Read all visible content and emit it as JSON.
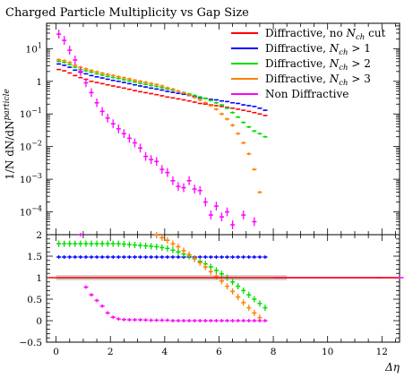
{
  "chart_data": {
    "type": "scatter",
    "title": "Charged Particle Multiplicity vs Gap Size",
    "xlabel": "Δη",
    "ylabel": "1/N dN/dN^particle",
    "ylabel_parts": {
      "main": "1/N dN/dN",
      "sup": "particle"
    },
    "xlim": [
      -0.35,
      12.65
    ],
    "x_ticks": [
      "0",
      "2",
      "4",
      "6",
      "8",
      "10",
      "12"
    ],
    "top_panel": {
      "yscale": "log",
      "ylim": [
        2e-05,
        60
      ],
      "y_ticks": [
        {
          "v": 10,
          "base": "10",
          "exp": "1"
        },
        {
          "v": 1,
          "base": "1",
          "exp": ""
        },
        {
          "v": 0.1,
          "base": "10",
          "exp": "−1"
        },
        {
          "v": 0.01,
          "base": "10",
          "exp": "−2"
        },
        {
          "v": 0.001,
          "base": "10",
          "exp": "−3"
        },
        {
          "v": 0.0001,
          "base": "10",
          "exp": "−4"
        }
      ],
      "series": [
        {
          "name": "Diffractive, no N_ch cut",
          "color": "#ff0000",
          "x": [
            0.1,
            0.3,
            0.5,
            0.7,
            0.9,
            1.1,
            1.3,
            1.5,
            1.7,
            1.9,
            2.1,
            2.3,
            2.5,
            2.7,
            2.9,
            3.1,
            3.3,
            3.5,
            3.7,
            3.9,
            4.1,
            4.3,
            4.5,
            4.7,
            4.9,
            5.1,
            5.3,
            5.5,
            5.7,
            5.9,
            6.1,
            6.3,
            6.5,
            6.7,
            6.9,
            7.1,
            7.3,
            7.5,
            7.7
          ],
          "y": [
            2.3,
            2.1,
            1.8,
            1.5,
            1.3,
            1.15,
            1.0,
            0.92,
            0.85,
            0.78,
            0.72,
            0.67,
            0.62,
            0.57,
            0.52,
            0.48,
            0.45,
            0.42,
            0.39,
            0.36,
            0.33,
            0.31,
            0.29,
            0.27,
            0.25,
            0.23,
            0.21,
            0.2,
            0.19,
            0.18,
            0.17,
            0.16,
            0.15,
            0.14,
            0.13,
            0.12,
            0.11,
            0.1,
            0.09
          ],
          "yerr_rel": 0.05
        },
        {
          "name": "Diffractive, N_ch > 1",
          "color": "#0000ff",
          "x": [
            0.1,
            0.3,
            0.5,
            0.7,
            0.9,
            1.1,
            1.3,
            1.5,
            1.7,
            1.9,
            2.1,
            2.3,
            2.5,
            2.7,
            2.9,
            3.1,
            3.3,
            3.5,
            3.7,
            3.9,
            4.1,
            4.3,
            4.5,
            4.7,
            4.9,
            5.1,
            5.3,
            5.5,
            5.7,
            5.9,
            6.1,
            6.3,
            6.5,
            6.7,
            6.9,
            7.1,
            7.3,
            7.5,
            7.7
          ],
          "y": [
            3.4,
            3.1,
            2.7,
            2.2,
            1.9,
            1.7,
            1.5,
            1.37,
            1.27,
            1.16,
            1.07,
            1.0,
            0.92,
            0.85,
            0.78,
            0.72,
            0.67,
            0.62,
            0.58,
            0.54,
            0.49,
            0.46,
            0.43,
            0.4,
            0.37,
            0.34,
            0.31,
            0.3,
            0.28,
            0.27,
            0.25,
            0.24,
            0.22,
            0.21,
            0.19,
            0.18,
            0.17,
            0.15,
            0.13
          ],
          "yerr_rel": 0.05
        },
        {
          "name": "Diffractive, N_ch > 2",
          "color": "#00dd00",
          "x": [
            0.1,
            0.3,
            0.5,
            0.7,
            0.9,
            1.1,
            1.3,
            1.5,
            1.7,
            1.9,
            2.1,
            2.3,
            2.5,
            2.7,
            2.9,
            3.1,
            3.3,
            3.5,
            3.7,
            3.9,
            4.1,
            4.3,
            4.5,
            4.7,
            4.9,
            5.1,
            5.3,
            5.5,
            5.7,
            5.9,
            6.1,
            6.3,
            6.5,
            6.7,
            6.9,
            7.1,
            7.3,
            7.5,
            7.7
          ],
          "y": [
            4.1,
            3.8,
            3.3,
            2.7,
            2.3,
            2.1,
            1.9,
            1.7,
            1.55,
            1.42,
            1.31,
            1.22,
            1.12,
            1.03,
            0.95,
            0.87,
            0.81,
            0.75,
            0.7,
            0.64,
            0.58,
            0.54,
            0.5,
            0.45,
            0.41,
            0.37,
            0.33,
            0.3,
            0.26,
            0.22,
            0.19,
            0.15,
            0.11,
            0.08,
            0.055,
            0.04,
            0.03,
            0.025,
            0.02
          ],
          "yerr_rel": 0.08
        },
        {
          "name": "Diffractive, N_ch > 3",
          "color": "#ff8000",
          "x": [
            0.1,
            0.3,
            0.5,
            0.7,
            0.9,
            1.1,
            1.3,
            1.5,
            1.7,
            1.9,
            2.1,
            2.3,
            2.5,
            2.7,
            2.9,
            3.1,
            3.3,
            3.5,
            3.7,
            3.9,
            4.1,
            4.3,
            4.5,
            4.7,
            4.9,
            5.1,
            5.3,
            5.5,
            5.7,
            5.9,
            6.1,
            6.3,
            6.5,
            6.7,
            6.9,
            7.1,
            7.3,
            7.5
          ],
          "y": [
            4.6,
            4.3,
            3.8,
            3.1,
            2.7,
            2.4,
            2.15,
            1.95,
            1.78,
            1.63,
            1.5,
            1.38,
            1.28,
            1.18,
            1.08,
            1.0,
            0.93,
            0.86,
            0.8,
            0.72,
            0.63,
            0.57,
            0.5,
            0.44,
            0.38,
            0.32,
            0.27,
            0.22,
            0.18,
            0.14,
            0.1,
            0.07,
            0.045,
            0.025,
            0.013,
            0.006,
            0.002,
            0.0004
          ],
          "yerr_rel": 0.1
        },
        {
          "name": "Non Diffractive",
          "color": "#ff00ff",
          "x": [
            0.1,
            0.3,
            0.5,
            0.7,
            0.9,
            1.1,
            1.3,
            1.5,
            1.7,
            1.9,
            2.1,
            2.3,
            2.5,
            2.7,
            2.9,
            3.1,
            3.3,
            3.5,
            3.7,
            3.9,
            4.1,
            4.3,
            4.5,
            4.7,
            4.9,
            5.1,
            5.3,
            5.5,
            5.7,
            5.9,
            6.1,
            6.3,
            6.5,
            6.9,
            7.3
          ],
          "y": [
            28,
            18,
            9,
            4.5,
            2.0,
            0.9,
            0.45,
            0.22,
            0.12,
            0.075,
            0.05,
            0.035,
            0.025,
            0.018,
            0.013,
            0.009,
            0.005,
            0.004,
            0.0035,
            0.002,
            0.0016,
            0.0009,
            0.0006,
            0.00055,
            0.0009,
            0.0005,
            0.00045,
            0.0002,
            8e-05,
            0.00015,
            7e-05,
            0.0001,
            4e-05,
            8e-05,
            5e-05
          ],
          "yerr_rel": 0.3
        }
      ]
    },
    "ratio_panel": {
      "ylim": [
        -0.5,
        2.0
      ],
      "y_ticks": [
        "-0.5",
        "0",
        "0.5",
        "1",
        "1.5",
        "2"
      ],
      "reference": 1.0,
      "band_color": "#c8c8c8",
      "series": [
        {
          "name": "Diffractive, N_ch > 1",
          "color": "#0000ff",
          "x": [
            0.1,
            0.3,
            0.5,
            0.7,
            0.9,
            1.1,
            1.3,
            1.5,
            1.7,
            1.9,
            2.1,
            2.3,
            2.5,
            2.7,
            2.9,
            3.1,
            3.3,
            3.5,
            3.7,
            3.9,
            4.1,
            4.3,
            4.5,
            4.7,
            4.9,
            5.1,
            5.3,
            5.5,
            5.7,
            5.9,
            6.1,
            6.3,
            6.5,
            6.7,
            6.9,
            7.1,
            7.3,
            7.5,
            7.7
          ],
          "y": [
            1.48,
            1.48,
            1.48,
            1.48,
            1.48,
            1.48,
            1.48,
            1.48,
            1.48,
            1.48,
            1.48,
            1.48,
            1.48,
            1.48,
            1.48,
            1.48,
            1.48,
            1.48,
            1.48,
            1.48,
            1.48,
            1.48,
            1.48,
            1.48,
            1.48,
            1.48,
            1.48,
            1.48,
            1.48,
            1.48,
            1.48,
            1.48,
            1.48,
            1.48,
            1.48,
            1.48,
            1.48,
            1.48,
            1.48
          ]
        },
        {
          "name": "Diffractive, N_ch > 2",
          "color": "#00dd00",
          "x": [
            0.1,
            0.3,
            0.5,
            0.7,
            0.9,
            1.1,
            1.3,
            1.5,
            1.7,
            1.9,
            2.1,
            2.3,
            2.5,
            2.7,
            2.9,
            3.1,
            3.3,
            3.5,
            3.7,
            3.9,
            4.1,
            4.3,
            4.5,
            4.7,
            4.9,
            5.1,
            5.3,
            5.5,
            5.7,
            5.9,
            6.1,
            6.3,
            6.5,
            6.7,
            6.9,
            7.1,
            7.3,
            7.5,
            7.7
          ],
          "y": [
            1.79,
            1.79,
            1.79,
            1.79,
            1.79,
            1.79,
            1.79,
            1.79,
            1.79,
            1.79,
            1.79,
            1.79,
            1.78,
            1.77,
            1.76,
            1.75,
            1.74,
            1.73,
            1.72,
            1.7,
            1.68,
            1.64,
            1.6,
            1.55,
            1.5,
            1.44,
            1.38,
            1.32,
            1.25,
            1.17,
            1.09,
            1.0,
            0.9,
            0.8,
            0.7,
            0.6,
            0.5,
            0.4,
            0.3
          ]
        },
        {
          "name": "Diffractive, N_ch > 3",
          "color": "#ff8000",
          "x": [
            3.7,
            3.9,
            4.1,
            4.3,
            4.5,
            4.7,
            4.9,
            5.1,
            5.3,
            5.5,
            5.7,
            5.9,
            6.1,
            6.3,
            6.5,
            6.7,
            6.9,
            7.1,
            7.3,
            7.5
          ],
          "y": [
            1.99,
            1.93,
            1.87,
            1.79,
            1.72,
            1.63,
            1.54,
            1.45,
            1.35,
            1.25,
            1.14,
            1.03,
            0.92,
            0.8,
            0.68,
            0.55,
            0.42,
            0.3,
            0.18,
            0.07
          ]
        },
        {
          "name": "Non Diffractive",
          "color": "#ff00ff",
          "x": [
            0.9,
            1.1,
            1.3,
            1.5,
            1.7,
            1.9,
            2.1,
            2.3,
            2.5,
            2.7,
            2.9,
            3.1,
            3.3,
            3.5,
            3.7,
            3.9,
            4.1,
            4.3,
            4.5,
            4.7,
            4.9,
            5.1,
            5.3,
            5.5,
            5.7,
            5.9,
            6.1,
            6.3,
            6.5,
            6.7,
            6.9,
            7.1,
            7.3,
            7.5,
            7.7,
            8.5,
            9.5,
            10.5,
            11.5,
            12.3
          ],
          "y": [
            2.0,
            0.78,
            0.6,
            0.47,
            0.34,
            0.18,
            0.08,
            0.04,
            0.025,
            0.02,
            0.02,
            0.02,
            0.015,
            0.01,
            0.01,
            0.01,
            0.01,
            0.0,
            0.0,
            0.0,
            0.0,
            0.0,
            0.0,
            0.0,
            0.0,
            0.0,
            0.0,
            0.0,
            0.0,
            0.0,
            0.0,
            0.0,
            0.0,
            0.0,
            0.0,
            1.0,
            1.0,
            1.0,
            1.0,
            1.0
          ]
        },
        {
          "name": "Diffractive, no N_ch cut",
          "color": "#ff0000",
          "x": [
            -0.3,
            12.6
          ],
          "y": [
            1.0,
            1.0
          ]
        }
      ]
    },
    "legend": {
      "placement": "top-right",
      "entries": [
        {
          "label": "Diffractive, no N_ch cut",
          "color": "#ff0000",
          "prefix": "Diffractive, no ",
          "sub": "ch",
          "suffix": " cut"
        },
        {
          "label": "Diffractive, N_ch > 1",
          "color": "#0000ff",
          "prefix": "Diffractive, ",
          "sub": "ch",
          "suffix": " > 1"
        },
        {
          "label": "Diffractive, N_ch > 2",
          "color": "#00dd00",
          "prefix": "Diffractive, ",
          "sub": "ch",
          "suffix": " > 2"
        },
        {
          "label": "Diffractive, N_ch > 3",
          "color": "#ff8000",
          "prefix": "Diffractive, ",
          "sub": "ch",
          "suffix": " > 3"
        },
        {
          "label": "Non Diffractive",
          "color": "#ff00ff",
          "prefix": "Non Diffractive",
          "sub": "",
          "suffix": ""
        }
      ]
    },
    "grid": false
  }
}
